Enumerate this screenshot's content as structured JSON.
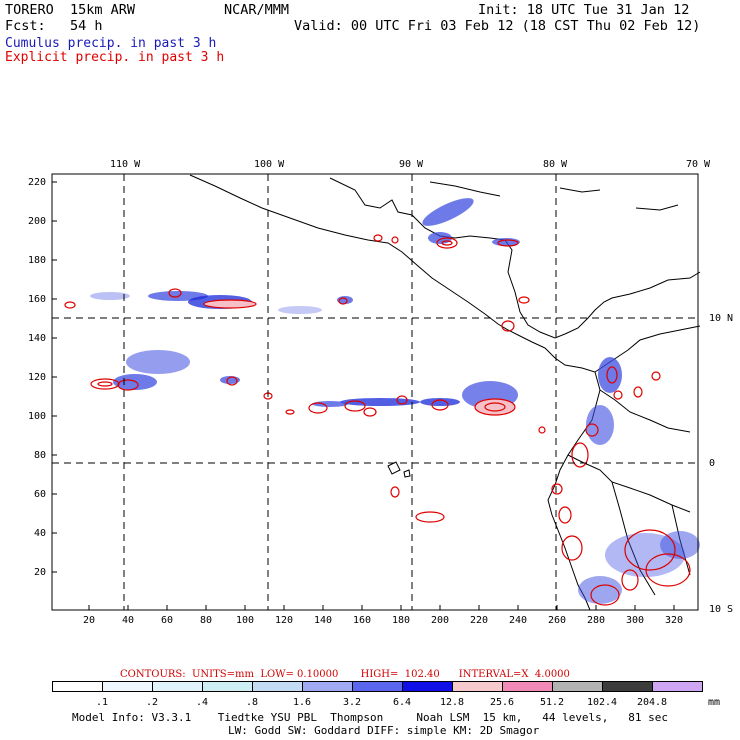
{
  "header": {
    "model_name": "TORERO  15km ARW",
    "center": "NCAR/MMM",
    "init": "Init: 18 UTC Tue 31 Jan 12",
    "forecast": "Fcst:   54 h",
    "valid": "Valid: 00 UTC Fri 03 Feb 12 (18 CST Thu 02 Feb 12)",
    "field_cumulus": "Cumulus precip. in past 3 h",
    "field_explicit": "Explicit precip. in past 3 h"
  },
  "map": {
    "lon_labels": [
      "110 W",
      "100 W",
      "90 W",
      "80 W",
      "70 W"
    ],
    "lat_labels": [
      "10 N",
      "0",
      "10 S"
    ],
    "y_ticks": [
      "220",
      "200",
      "180",
      "160",
      "140",
      "120",
      "100",
      "80",
      "60",
      "40",
      "20"
    ],
    "x_ticks": [
      "20",
      "40",
      "60",
      "80",
      "100",
      "120",
      "140",
      "160",
      "180",
      "200",
      "220",
      "240",
      "260",
      "280",
      "300",
      "320"
    ],
    "colors": {
      "cumulus": "#3333dd",
      "explicit": "#dd0000",
      "coast": "#000000"
    }
  },
  "contours": {
    "text": "CONTOURS:  UNITS=mm  LOW= 0.10000       HIGH=  102.40      INTERVAL=X  4.0000"
  },
  "legend": {
    "unit": "mm",
    "labels": [
      ".1",
      ".2",
      ".4",
      ".8",
      "1.6",
      "3.2",
      "6.4",
      "12.8",
      "25.6",
      "51.2",
      "102.4",
      "204.8"
    ],
    "colors": [
      "#ffffff",
      "#f0f8ff",
      "#e2f4fb",
      "#cdeff3",
      "#c3dcf4",
      "#a0aaf2",
      "#5a66ee",
      "#1010e6",
      "#f6c9cc",
      "#f28ab8",
      "#b3b3b3",
      "#3c3c3c",
      "#cfa6f3"
    ]
  },
  "footer": {
    "line1": "Model Info: V3.3.1    Tiedtke YSU PBL  Thompson     Noah LSM  15 km,   44 levels,   81 sec",
    "line2": "LW: Godd SW: Goddard DIFF: simple KM: 2D Smagor"
  }
}
